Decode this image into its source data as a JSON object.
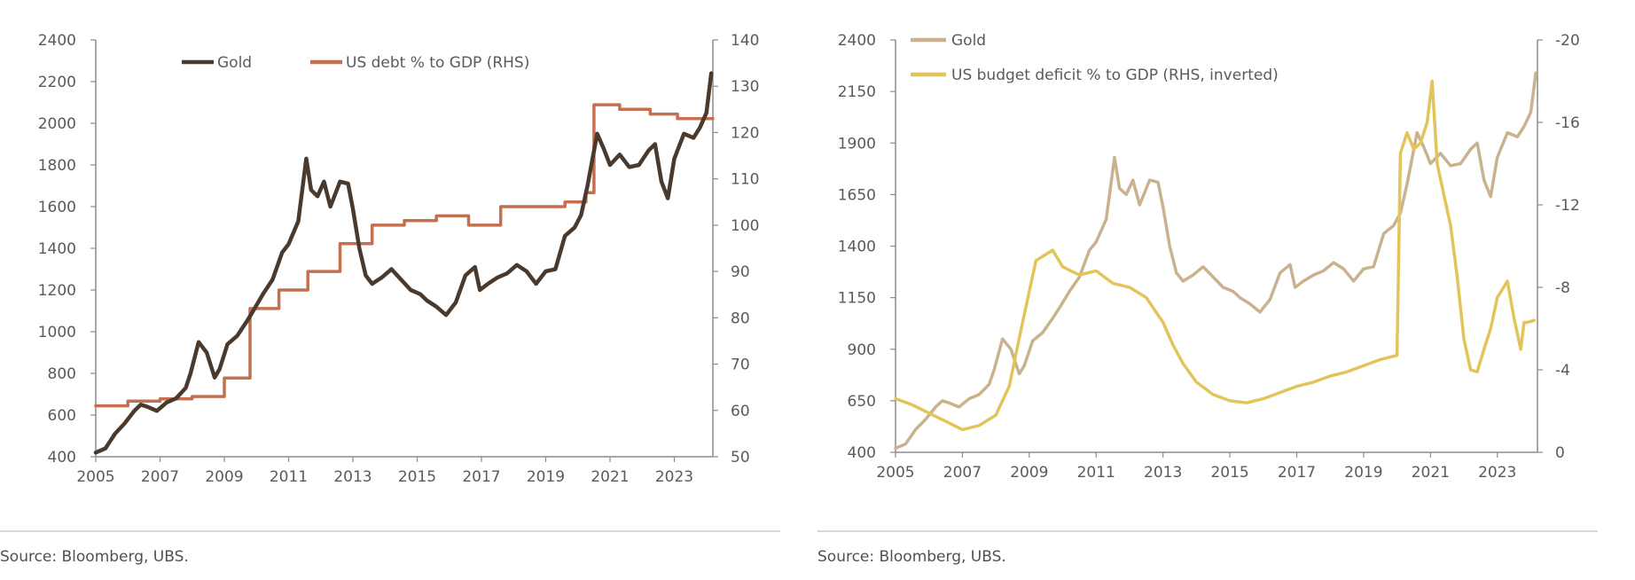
{
  "panels": [
    {
      "source": "Source: Bloomberg, UBS.",
      "legend": [
        "Gold",
        "US debt % to GDP (RHS)"
      ]
    },
    {
      "source": "Source: Bloomberg, UBS.",
      "legend": [
        "Gold",
        "US budget deficit % to GDP (RHS, inverted)"
      ]
    }
  ],
  "chart_data": [
    {
      "type": "line",
      "title": "",
      "xlabel": "",
      "ylabel": "",
      "x_ticks": [
        "2005",
        "2007",
        "2009",
        "2011",
        "2013",
        "2015",
        "2017",
        "2019",
        "2021",
        "2023"
      ],
      "xlim": [
        2005,
        2024.2
      ],
      "y_left": {
        "lim": [
          400,
          2400
        ],
        "ticks": [
          400,
          600,
          800,
          1000,
          1200,
          1400,
          1600,
          1800,
          2000,
          2200,
          2400
        ]
      },
      "y_right": {
        "lim": [
          50,
          140
        ],
        "ticks": [
          50,
          60,
          70,
          80,
          90,
          100,
          110,
          120,
          130,
          140
        ],
        "inverted": false
      },
      "grid": false,
      "legend_position": "top",
      "series": [
        {
          "name": "Gold",
          "axis": "left",
          "color": "#4a3a2e",
          "x": [
            2005.0,
            2005.3,
            2005.6,
            2005.9,
            2006.2,
            2006.4,
            2006.6,
            2006.9,
            2007.2,
            2007.5,
            2007.8,
            2007.95,
            2008.2,
            2008.45,
            2008.7,
            2008.85,
            2009.1,
            2009.4,
            2009.7,
            2009.9,
            2010.2,
            2010.5,
            2010.8,
            2011.0,
            2011.3,
            2011.55,
            2011.7,
            2011.9,
            2012.1,
            2012.3,
            2012.6,
            2012.85,
            2013.0,
            2013.2,
            2013.4,
            2013.6,
            2013.9,
            2014.2,
            2014.5,
            2014.8,
            2015.1,
            2015.3,
            2015.6,
            2015.9,
            2016.2,
            2016.5,
            2016.8,
            2016.95,
            2017.2,
            2017.5,
            2017.8,
            2018.1,
            2018.4,
            2018.7,
            2019.0,
            2019.3,
            2019.6,
            2019.9,
            2020.1,
            2020.3,
            2020.6,
            2020.8,
            2021.0,
            2021.3,
            2021.6,
            2021.9,
            2022.2,
            2022.4,
            2022.6,
            2022.8,
            2023.0,
            2023.3,
            2023.6,
            2023.8,
            2024.0,
            2024.15
          ],
          "values": [
            420,
            440,
            510,
            560,
            620,
            650,
            640,
            620,
            660,
            680,
            730,
            800,
            950,
            900,
            780,
            820,
            940,
            980,
            1050,
            1100,
            1180,
            1250,
            1380,
            1420,
            1530,
            1830,
            1680,
            1650,
            1720,
            1600,
            1720,
            1710,
            1590,
            1400,
            1270,
            1230,
            1260,
            1300,
            1250,
            1200,
            1180,
            1150,
            1120,
            1080,
            1140,
            1270,
            1310,
            1200,
            1230,
            1260,
            1280,
            1320,
            1290,
            1230,
            1290,
            1300,
            1460,
            1500,
            1560,
            1700,
            1950,
            1880,
            1800,
            1850,
            1790,
            1800,
            1870,
            1900,
            1720,
            1640,
            1830,
            1950,
            1930,
            1980,
            2050,
            2240
          ]
        },
        {
          "name": "US debt % to GDP (RHS)",
          "axis": "right",
          "color": "#c47050",
          "step": true,
          "x": [
            2005.0,
            2006.0,
            2007.0,
            2008.0,
            2009.0,
            2009.8,
            2010.7,
            2011.6,
            2012.6,
            2013.6,
            2014.6,
            2015.6,
            2016.6,
            2017.6,
            2018.6,
            2019.6,
            2020.25,
            2020.5,
            2021.3,
            2022.25,
            2023.1,
            2024.2
          ],
          "values": [
            61,
            62,
            62.5,
            63,
            67,
            82,
            86,
            90,
            96,
            100,
            101,
            102,
            100,
            104,
            104,
            105,
            107,
            126,
            125,
            124,
            123,
            123
          ]
        }
      ]
    },
    {
      "type": "line",
      "title": "",
      "xlabel": "",
      "ylabel": "",
      "x_ticks": [
        "2005",
        "2007",
        "2009",
        "2011",
        "2013",
        "2015",
        "2017",
        "2019",
        "2021",
        "2023"
      ],
      "xlim": [
        2005,
        2024.2
      ],
      "y_left": {
        "lim": [
          400,
          2400
        ],
        "ticks": [
          400,
          650,
          900,
          1150,
          1400,
          1650,
          1900,
          2150,
          2400
        ]
      },
      "y_right": {
        "lim": [
          0,
          -20
        ],
        "ticks": [
          0,
          -4,
          -8,
          -12,
          -16,
          -20
        ],
        "inverted": true
      },
      "grid": false,
      "legend_position": "top-left",
      "series": [
        {
          "name": "Gold",
          "axis": "left",
          "color": "#c9b38f",
          "x": [
            2005.0,
            2005.3,
            2005.6,
            2005.9,
            2006.2,
            2006.4,
            2006.6,
            2006.9,
            2007.2,
            2007.5,
            2007.8,
            2007.95,
            2008.2,
            2008.45,
            2008.7,
            2008.85,
            2009.1,
            2009.4,
            2009.7,
            2009.9,
            2010.2,
            2010.5,
            2010.8,
            2011.0,
            2011.3,
            2011.55,
            2011.7,
            2011.9,
            2012.1,
            2012.3,
            2012.6,
            2012.85,
            2013.0,
            2013.2,
            2013.4,
            2013.6,
            2013.9,
            2014.2,
            2014.5,
            2014.8,
            2015.1,
            2015.3,
            2015.6,
            2015.9,
            2016.2,
            2016.5,
            2016.8,
            2016.95,
            2017.2,
            2017.5,
            2017.8,
            2018.1,
            2018.4,
            2018.7,
            2019.0,
            2019.3,
            2019.6,
            2019.9,
            2020.1,
            2020.3,
            2020.6,
            2020.8,
            2021.0,
            2021.3,
            2021.6,
            2021.9,
            2022.2,
            2022.4,
            2022.6,
            2022.8,
            2023.0,
            2023.3,
            2023.6,
            2023.8,
            2024.0,
            2024.15
          ],
          "values": [
            420,
            440,
            510,
            560,
            620,
            650,
            640,
            620,
            660,
            680,
            730,
            800,
            950,
            900,
            780,
            820,
            940,
            980,
            1050,
            1100,
            1180,
            1250,
            1380,
            1420,
            1530,
            1830,
            1680,
            1650,
            1720,
            1600,
            1720,
            1710,
            1590,
            1400,
            1270,
            1230,
            1260,
            1300,
            1250,
            1200,
            1180,
            1150,
            1120,
            1080,
            1140,
            1270,
            1310,
            1200,
            1230,
            1260,
            1280,
            1320,
            1290,
            1230,
            1290,
            1300,
            1460,
            1500,
            1560,
            1700,
            1950,
            1880,
            1800,
            1850,
            1790,
            1800,
            1870,
            1900,
            1720,
            1640,
            1830,
            1950,
            1930,
            1980,
            2050,
            2240
          ]
        },
        {
          "name": "US budget deficit % to GDP (RHS, inverted)",
          "axis": "right",
          "color": "#e2c45a",
          "x": [
            2005.0,
            2005.5,
            2006.0,
            2006.5,
            2007.0,
            2007.5,
            2008.0,
            2008.4,
            2008.8,
            2009.2,
            2009.7,
            2010.0,
            2010.5,
            2011.0,
            2011.5,
            2012.0,
            2012.5,
            2013.0,
            2013.3,
            2013.6,
            2014.0,
            2014.5,
            2015.0,
            2015.5,
            2016.0,
            2016.5,
            2017.0,
            2017.5,
            2018.0,
            2018.5,
            2019.0,
            2019.5,
            2020.0,
            2020.1,
            2020.3,
            2020.5,
            2020.7,
            2020.9,
            2021.05,
            2021.2,
            2021.4,
            2021.6,
            2021.8,
            2022.0,
            2022.2,
            2022.4,
            2022.6,
            2022.8,
            2023.0,
            2023.3,
            2023.5,
            2023.7,
            2023.8,
            2023.9,
            2024.1
          ],
          "values": [
            -2.6,
            -2.3,
            -1.9,
            -1.5,
            -1.1,
            -1.3,
            -1.8,
            -3.2,
            -6.3,
            -9.3,
            -9.8,
            -9.0,
            -8.6,
            -8.8,
            -8.2,
            -8.0,
            -7.5,
            -6.3,
            -5.2,
            -4.3,
            -3.4,
            -2.8,
            -2.5,
            -2.4,
            -2.6,
            -2.9,
            -3.2,
            -3.4,
            -3.7,
            -3.9,
            -4.2,
            -4.5,
            -4.7,
            -14.5,
            -15.5,
            -14.7,
            -15.0,
            -16.0,
            -18.0,
            -14.0,
            -12.5,
            -11.0,
            -8.5,
            -5.5,
            -4.0,
            -3.9,
            -5.0,
            -6.0,
            -7.5,
            -8.3,
            -6.5,
            -5.0,
            -6.3,
            -6.3,
            -6.4
          ]
        }
      ]
    }
  ]
}
